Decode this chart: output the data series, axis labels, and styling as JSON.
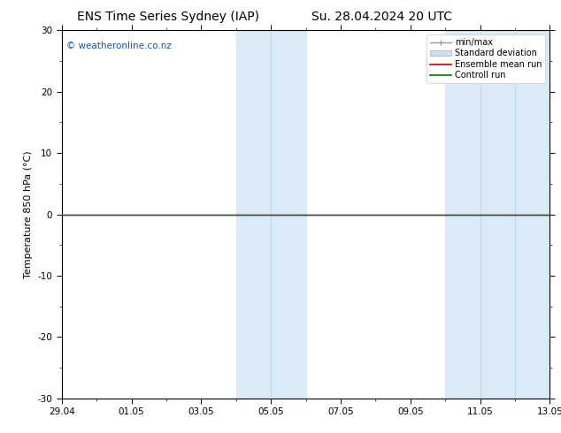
{
  "title_left": "ENS Time Series Sydney (IAP)",
  "title_right": "Su. 28.04.2024 20 UTC",
  "ylabel": "Temperature 850 hPa (°C)",
  "ylim": [
    -30,
    30
  ],
  "yticks": [
    -30,
    -20,
    -10,
    0,
    10,
    20,
    30
  ],
  "xtick_labels": [
    "29.04",
    "01.05",
    "03.05",
    "05.05",
    "07.05",
    "09.05",
    "11.05",
    "13.05"
  ],
  "xtick_positions": [
    0,
    2,
    4,
    6,
    8,
    10,
    12,
    14
  ],
  "x_total": 14.0,
  "background_color": "#ffffff",
  "plot_bg_color": "#ffffff",
  "shaded_regions": [
    {
      "x_start": 5.0,
      "x_end": 7.0
    },
    {
      "x_start": 11.0,
      "x_end": 14.0
    }
  ],
  "shaded_color": "#daeaf7",
  "shaded_inner_lines": [
    6.0,
    12.0,
    13.0
  ],
  "inner_line_color": "#c0d8ee",
  "control_run_y": 0.0,
  "control_run_color": "#007700",
  "ensemble_mean_color": "#cc0000",
  "zero_line_color": "#000000",
  "copyright_text": "© weatheronline.co.nz",
  "copyright_color": "#1155cc",
  "legend_items": [
    {
      "label": "min/max",
      "color": "#999999",
      "style": "line_with_ticks"
    },
    {
      "label": "Standard deviation",
      "color": "#cce0f0",
      "style": "box"
    },
    {
      "label": "Ensemble mean run",
      "color": "#cc0000",
      "style": "line"
    },
    {
      "label": "Controll run",
      "color": "#007700",
      "style": "line"
    }
  ],
  "title_fontsize": 10,
  "axis_label_fontsize": 8,
  "tick_fontsize": 7.5,
  "legend_fontsize": 7,
  "copyright_fontsize": 7.5,
  "figsize": [
    6.34,
    4.9
  ],
  "dpi": 100
}
